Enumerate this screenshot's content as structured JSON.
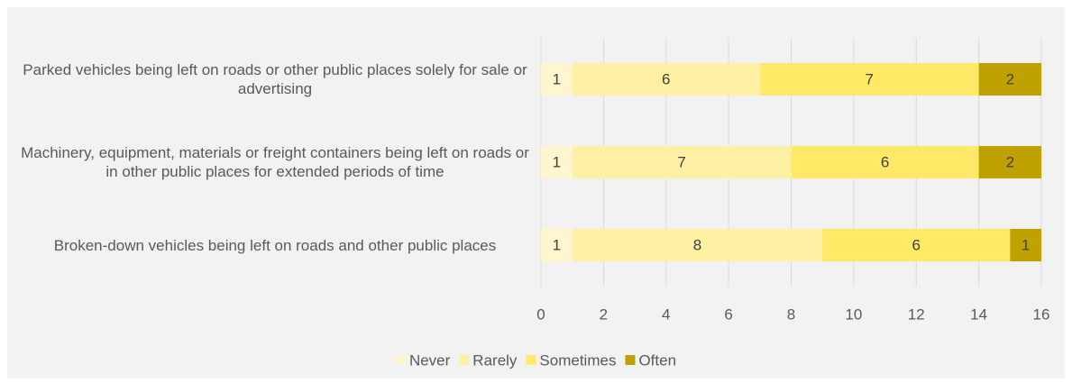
{
  "chart_data": {
    "type": "stacked-bar-horizontal",
    "categories": [
      "Parked vehicles being left on roads or other public places solely for sale or advertising",
      "Machinery, equipment, materials or freight containers being left on roads or in other public places for extended periods of time",
      "Broken-down vehicles being left on roads and other public places"
    ],
    "series": [
      {
        "name": "Never",
        "color": "#fff6cf",
        "values": [
          1,
          1,
          1
        ]
      },
      {
        "name": "Rarely",
        "color": "#fff1a3",
        "values": [
          6,
          7,
          8
        ]
      },
      {
        "name": "Sometimes",
        "color": "#ffe967",
        "values": [
          7,
          6,
          6
        ]
      },
      {
        "name": "Often",
        "color": "#bfa200",
        "values": [
          2,
          2,
          1
        ]
      }
    ],
    "xlim": [
      0,
      16
    ],
    "xticks": [
      0,
      2,
      4,
      6,
      8,
      10,
      12,
      14,
      16
    ],
    "grid": true,
    "legend": "bottom"
  }
}
